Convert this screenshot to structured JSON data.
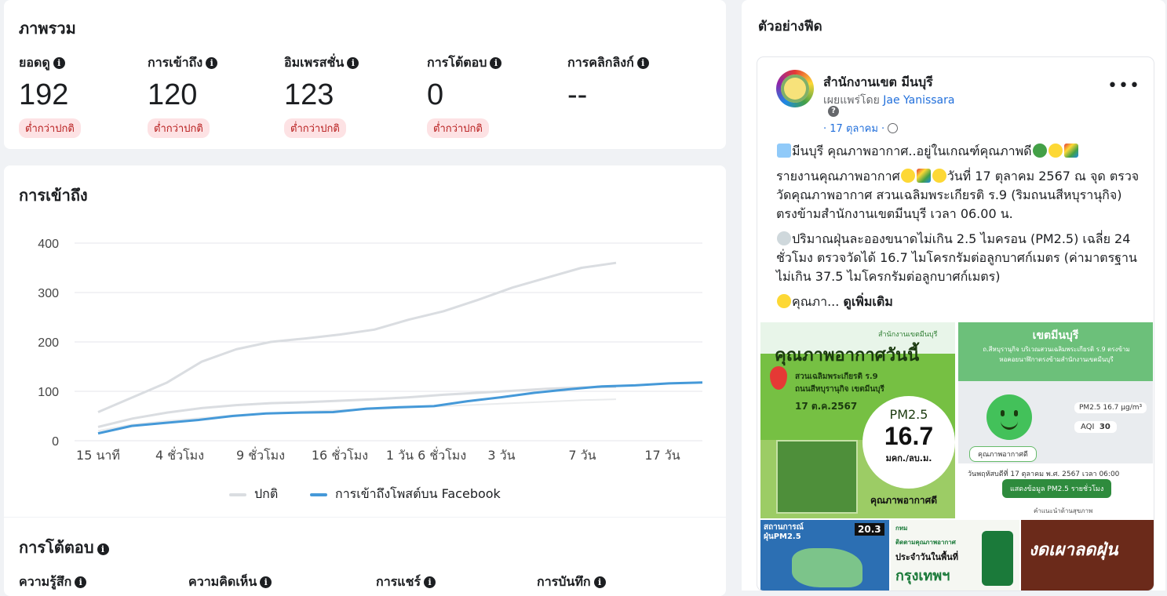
{
  "overview": {
    "title": "ภาพรวม",
    "metrics": [
      {
        "label": "ยอดดู",
        "value": "192",
        "badge": "ต่ำกว่าปกติ"
      },
      {
        "label": "การเข้าถึง",
        "value": "120",
        "badge": "ต่ำกว่าปกติ"
      },
      {
        "label": "อิมเพรสชั่น",
        "value": "123",
        "badge": "ต่ำกว่าปกติ"
      },
      {
        "label": "การโต้ตอบ",
        "value": "0",
        "badge": "ต่ำกว่าปกติ"
      },
      {
        "label": "การคลิกลิงก์",
        "value": "--",
        "badge": ""
      }
    ]
  },
  "reach": {
    "title": "การเข้าถึง",
    "legend_normal": "ปกติ",
    "legend_facebook": "การเข้าถึงโพสต์บน Facebook"
  },
  "interactions": {
    "title": "การโต้ตอบ",
    "labels": [
      "ความรู้สึก",
      "ความคิดเห็น",
      "การแชร์",
      "การบันทึก"
    ]
  },
  "preview": {
    "title": "ตัวอย่างฟีด",
    "page_name": "สำนักงานเขต มีนบุรี",
    "published_by_prefix": "เผยแพร่โดย",
    "published_by_name": "Jae Yanissara",
    "date": "· 17 ตุลาคม ·",
    "more_label": "•••",
    "lines": [
      "มีนบุรี คุณภาพอากาศ..อยู่ในเกณฑ์คุณภาพดี",
      "รายงานคุณภาพอากาศ",
      "วันที่ 17 ตุลาคม 2567 ณ จุด ตรวจวัดคุณภาพอากาศ สวนเฉลิมพระเกียรติ ร.9 (ริมถนนสีหบุรานุกิจ) ตรงข้ามสำนักงานเขตมีนบุรี เวลา 06.00 น.",
      "ปริมาณฝุ่นละอองขนาดไม่เกิน 2.5 ไมครอน (PM2.5) เฉลี่ย 24 ชั่วโมง ตรวจวัดได้ 16.7 ไมโครกรัมต่อลูกบาศก์เมตร (ค่ามาตรฐานไม่เกิน 37.5 ไมโครกรัมต่อลูกบาศก์เมตร)",
      "คุณภา...",
      "ดูเพิ่มเติม"
    ],
    "img1": {
      "org": "สำนักงานเขตมีนบุรี",
      "heading": "คุณภาพอากาศวันนี้",
      "location1": "สวนเฉลิมพระเกียรติ ร.9",
      "location2": "ถนนสีหบุรานุกิจ เขตมีนบุรี",
      "date": "17 ต.ค.2567",
      "pm_label": "PM2.5",
      "pm_value": "16.7",
      "pm_unit": "มคก./ลบ.ม.",
      "footer": "คุณภาพอากาศดี"
    },
    "img2": {
      "district": "เขตมีนบุรี",
      "place": "ถ.สีหบุรานุกิจ บริเวณสวนเฉลิมพระเกียรติ ร.9 ตรงข้ามหอคอยนาฬิกาตรงข้ามสำนักงานเขตมีนบุรี",
      "pm_chip": "PM2.5 16.7 µg/m³",
      "aqi_label": "AQI",
      "aqi_value": "30",
      "status": "คุณภาพอากาศดี",
      "timestamp": "วันพฤหัสบดีที่ 17 ตุลาคม พ.ศ. 2567 เวลา 06:00",
      "button": "แสดงข้อมูล PM2.5 รายชั่วโมง",
      "footnote": "คำแนะนำด้านสุขภาพ"
    },
    "img3": {
      "title": "สถานการณ์ ฝุ่นPM2.5",
      "value": "20.3"
    },
    "img4": {
      "org": "กทม",
      "line1": "ติดตามคุณภาพอากาศ",
      "line2": "ประจำวันในพื้นที่",
      "line3": "กรุงเทพฯ"
    },
    "img5": {
      "title": "งดเผาลดฝุ่น"
    }
  },
  "chart_data": {
    "type": "line",
    "title": "การเข้าถึง",
    "x_labels": [
      "15 นาที",
      "4 ชั่วโมง",
      "9 ชั่วโมง",
      "16 ชั่วโมง",
      "1 วัน 6 ชั่วโมง",
      "3 วัน",
      "7 วัน",
      "17 วัน"
    ],
    "y_ticks": [
      0,
      100,
      200,
      300,
      400
    ],
    "ylim": [
      0,
      400
    ],
    "legend_position": "bottom",
    "grid": true,
    "series": [
      {
        "name": "ปกติ",
        "color": "#dadde1",
        "band": true,
        "upper": [
          58,
          88,
          118,
          160,
          185,
          200,
          207,
          215,
          225,
          245,
          262,
          285,
          310,
          330,
          350,
          360
        ],
        "median": [
          28,
          45,
          57,
          66,
          72,
          76,
          78,
          81,
          84,
          88,
          93,
          97,
          101,
          105,
          108,
          109
        ],
        "lower": [
          20,
          33,
          40,
          46,
          52,
          56,
          59,
          62,
          64,
          67,
          70,
          73,
          76,
          79,
          82,
          84
        ]
      },
      {
        "name": "การเข้าถึงโพสต์บน Facebook",
        "color": "#4599d8",
        "values": [
          15,
          30,
          36,
          42,
          50,
          55,
          57,
          58,
          65,
          68,
          70,
          80,
          88,
          97,
          104,
          110,
          112,
          116,
          118
        ]
      }
    ]
  }
}
